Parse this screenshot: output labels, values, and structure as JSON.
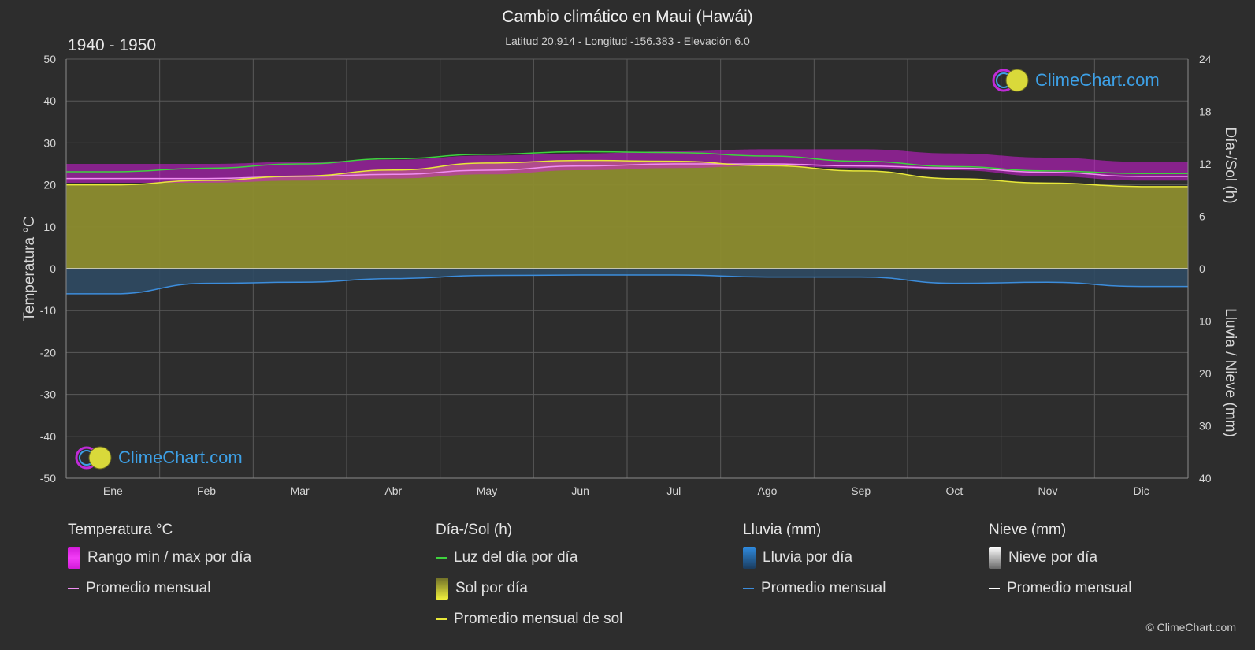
{
  "header": {
    "title": "Cambio climático en Maui (Hawái)",
    "subtitle": "Latitud 20.914 - Longitud -156.383 - Elevación 6.0",
    "period": "1940 - 1950"
  },
  "brand": {
    "logo_text": "ClimeChart.com",
    "copyright": "© ClimeChart.com"
  },
  "colors": {
    "background": "#2d2d2d",
    "temp_range": "#d21ad8",
    "temp_avg": "#f08ef2",
    "daylight": "#3ed33e",
    "sunshine_fill": "#8c8c2e",
    "sunshine_avg": "#e8e83a",
    "rain": "#2e6fb0",
    "rain_avg": "#3c8ddc",
    "snow_avg": "#ffffff",
    "logo": "#3da0e6"
  },
  "chart_data": {
    "type": "line",
    "months": [
      "Ene",
      "Feb",
      "Mar",
      "Abr",
      "May",
      "Jun",
      "Jul",
      "Ago",
      "Sep",
      "Oct",
      "Nov",
      "Dic"
    ],
    "axes": {
      "left": {
        "label": "Temperatura °C",
        "ylim": [
          -50,
          50
        ],
        "ticks": [
          50,
          40,
          30,
          20,
          10,
          0,
          -10,
          -20,
          -30,
          -40,
          -50
        ]
      },
      "right_top": {
        "label": "Día-/Sol (h)",
        "ylim": [
          0,
          24
        ],
        "ticks": [
          24,
          18,
          12,
          6,
          0
        ]
      },
      "right_bottom": {
        "label": "Lluvia / Nieve (mm)",
        "ylim": [
          0,
          40
        ],
        "ticks": [
          0,
          10,
          20,
          30,
          40
        ]
      }
    },
    "grid": true,
    "series": [
      {
        "name": "Rango min / max por día",
        "axis": "left",
        "min": [
          20.5,
          20.5,
          21,
          21.5,
          22.5,
          23.5,
          24,
          24.5,
          24,
          23.5,
          22,
          21
        ],
        "max": [
          25,
          25,
          25.5,
          26,
          27,
          27.5,
          28,
          28.5,
          28.5,
          27.5,
          26.5,
          25.5
        ]
      },
      {
        "name": "Promedio mensual",
        "axis": "left",
        "values": [
          21.5,
          21.5,
          22,
          22.5,
          23.5,
          24.5,
          25,
          25,
          24.5,
          24,
          23,
          22
        ]
      },
      {
        "name": "Luz del día por día",
        "axis": "right_top",
        "values": [
          11.1,
          11.5,
          12.0,
          12.6,
          13.1,
          13.4,
          13.3,
          12.9,
          12.3,
          11.7,
          11.2,
          10.9
        ]
      },
      {
        "name": "Sol por día",
        "axis": "right_top",
        "values": [
          9.6,
          10.1,
          10.6,
          11.3,
          12.1,
          12.4,
          12.3,
          11.8,
          11.2,
          10.3,
          9.8,
          9.4
        ]
      },
      {
        "name": "Promedio mensual de sol",
        "axis": "right_top",
        "values": [
          9.6,
          10.1,
          10.6,
          11.3,
          12.1,
          12.4,
          12.3,
          11.8,
          11.2,
          10.3,
          9.8,
          9.4
        ]
      },
      {
        "name": "Promedio mensual",
        "axis": "right_bottom",
        "values": [
          4.8,
          2.8,
          2.6,
          1.9,
          1.3,
          1.2,
          1.2,
          1.6,
          1.6,
          2.8,
          2.6,
          3.4
        ]
      }
    ]
  },
  "legend": {
    "temperature": {
      "title": "Temperatura °C",
      "items": [
        "Rango min / max por día",
        "Promedio mensual"
      ]
    },
    "sun": {
      "title": "Día-/Sol (h)",
      "items": [
        "Luz del día por día",
        "Sol por día",
        "Promedio mensual de sol"
      ]
    },
    "rain": {
      "title": "Lluvia (mm)",
      "items": [
        "Lluvia por día",
        "Promedio mensual"
      ]
    },
    "snow": {
      "title": "Nieve (mm)",
      "items": [
        "Nieve por día",
        "Promedio mensual"
      ]
    }
  }
}
